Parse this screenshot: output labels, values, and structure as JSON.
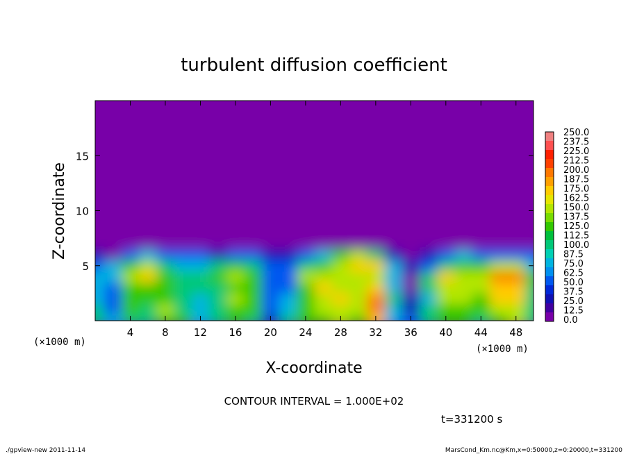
{
  "chart_data": {
    "type": "heatmap",
    "title": "turbulent diffusion coefficient",
    "xlabel": "X-coordinate",
    "ylabel": "Z-coordinate",
    "x_unit": "(×1000 m)",
    "y_unit": "(×1000 m)",
    "xlim": [
      0,
      50
    ],
    "ylim": [
      0,
      20
    ],
    "x_ticks": [
      4,
      8,
      12,
      16,
      20,
      24,
      28,
      32,
      36,
      40,
      44,
      48
    ],
    "y_ticks": [
      5,
      10,
      15
    ],
    "x_columns_km": [
      0,
      2,
      4,
      6,
      8,
      10,
      12,
      14,
      16,
      18,
      20,
      22,
      24,
      26,
      28,
      30,
      32,
      34,
      36,
      38,
      40,
      42,
      44,
      46,
      48,
      50
    ],
    "z_levels_km": [
      0,
      1,
      2,
      3,
      4,
      5,
      6,
      7,
      8
    ],
    "values": [
      [
        100,
        75,
        112,
        100,
        137,
        125,
        87,
        100,
        125,
        112,
        37,
        100,
        125,
        137,
        150,
        137,
        175,
        75,
        50,
        100,
        125,
        125,
        112,
        137,
        150,
        100
      ],
      [
        100,
        50,
        125,
        112,
        150,
        100,
        87,
        112,
        137,
        125,
        50,
        87,
        125,
        150,
        162,
        162,
        200,
        87,
        25,
        100,
        137,
        137,
        125,
        150,
        162,
        112
      ],
      [
        87,
        50,
        137,
        125,
        137,
        100,
        87,
        100,
        150,
        125,
        62,
        75,
        125,
        162,
        175,
        162,
        212,
        100,
        25,
        87,
        150,
        150,
        137,
        175,
        175,
        100
      ],
      [
        87,
        62,
        125,
        137,
        125,
        100,
        100,
        100,
        137,
        125,
        50,
        62,
        137,
        175,
        162,
        150,
        187,
        87,
        12,
        100,
        162,
        162,
        150,
        187,
        187,
        112
      ],
      [
        75,
        87,
        150,
        175,
        125,
        112,
        112,
        125,
        162,
        125,
        50,
        62,
        150,
        162,
        150,
        150,
        162,
        75,
        0,
        112,
        175,
        162,
        162,
        200,
        200,
        125
      ],
      [
        62,
        87,
        137,
        162,
        100,
        87,
        87,
        100,
        125,
        100,
        50,
        62,
        100,
        137,
        150,
        187,
        175,
        87,
        25,
        62,
        100,
        125,
        125,
        162,
        150,
        87
      ],
      [
        25,
        12,
        62,
        75,
        62,
        62,
        50,
        37,
        50,
        50,
        25,
        25,
        50,
        75,
        125,
        150,
        100,
        25,
        0,
        25,
        62,
        87,
        50,
        62,
        62,
        50
      ],
      [
        0,
        0,
        0,
        12,
        0,
        0,
        0,
        0,
        0,
        0,
        0,
        0,
        0,
        0,
        0,
        12,
        0,
        0,
        0,
        0,
        0,
        12,
        0,
        0,
        0,
        0
      ],
      [
        0,
        0,
        0,
        0,
        0,
        0,
        0,
        0,
        0,
        0,
        0,
        0,
        0,
        0,
        0,
        0,
        0,
        0,
        0,
        0,
        0,
        0,
        0,
        0,
        0,
        0
      ]
    ],
    "colorbar": {
      "labels": [
        "250.0",
        "237.5",
        "225.0",
        "212.5",
        "200.0",
        "187.5",
        "175.0",
        "162.5",
        "150.0",
        "137.5",
        "125.0",
        "112.5",
        "100.0",
        "87.5",
        "75.0",
        "62.5",
        "50.0",
        "37.5",
        "25.0",
        "12.5",
        "0.0"
      ],
      "colors": [
        "#f08080",
        "#ff5050",
        "#ff2000",
        "#ff4000",
        "#ff7800",
        "#ffa000",
        "#ffcc00",
        "#e6e600",
        "#b4e600",
        "#78dc00",
        "#32c800",
        "#00c03c",
        "#00c878",
        "#00d0b4",
        "#00b4e0",
        "#0090f0",
        "#0058f0",
        "#0028d8",
        "#1010b4",
        "#4000a0",
        "#7800a8"
      ]
    },
    "grid": false,
    "legend_position": "right"
  },
  "annotations": {
    "contour_interval": "CONTOUR INTERVAL = 1.000E+02",
    "time": "t=331200 s",
    "footer_left": "./gpview-new   2011-11-14",
    "footer_right": "MarsCond_Km.nc@Km,x=0:50000,z=0:20000,t=331200"
  }
}
